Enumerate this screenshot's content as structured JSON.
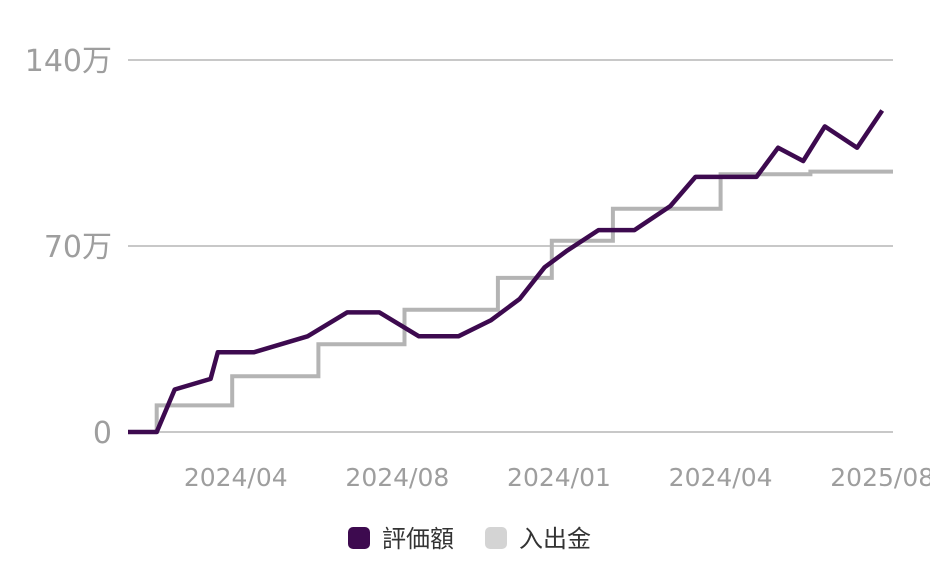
{
  "chart_data": {
    "type": "line",
    "step_series": "入出金",
    "y_ticks": [
      {
        "value": 0,
        "label": "0"
      },
      {
        "value": 70,
        "label": "70万"
      },
      {
        "value": 140,
        "label": "140万"
      }
    ],
    "x_ticks": [
      {
        "x": 2.5,
        "label": "2024/04"
      },
      {
        "x": 7.0,
        "label": "2024/08"
      },
      {
        "x": 11.5,
        "label": "2024/01"
      },
      {
        "x": 16.0,
        "label": "2024/04"
      },
      {
        "x": 20.5,
        "label": "2025/08"
      }
    ],
    "xlim": [
      -0.5,
      20.8
    ],
    "ylim": [
      0,
      140
    ],
    "grid": true,
    "legend_position": "bottom",
    "series": [
      {
        "name": "評価額",
        "color": "#3d0a4f",
        "x": [
          -0.5,
          0.3,
          0.8,
          1.8,
          2.0,
          3.0,
          4.5,
          5.6,
          6.5,
          7.6,
          8.7,
          9.6,
          10.4,
          11.1,
          11.7,
          12.6,
          13.6,
          14.6,
          15.3,
          15.8,
          17.0,
          17.6,
          18.3,
          18.9,
          19.8,
          20.5
        ],
        "values": [
          0,
          0,
          16,
          20,
          30,
          30,
          36,
          45,
          45,
          36,
          36,
          42,
          50,
          62,
          68,
          76,
          76,
          85,
          96,
          96,
          96,
          107,
          102,
          115,
          107,
          121
        ]
      },
      {
        "name": "入出金",
        "color": "#b4b4b4",
        "x": [
          -0.5,
          0.3,
          0.3,
          2.4,
          2.4,
          4.8,
          4.8,
          7.2,
          7.2,
          9.8,
          9.8,
          11.3,
          11.3,
          13.0,
          13.0,
          16.0,
          16.0,
          18.5,
          18.5,
          20.8
        ],
        "values": [
          0,
          0,
          10,
          10,
          21,
          21,
          33,
          33,
          46,
          46,
          58,
          58,
          72,
          72,
          84,
          84,
          97,
          97,
          98,
          98
        ]
      }
    ]
  }
}
